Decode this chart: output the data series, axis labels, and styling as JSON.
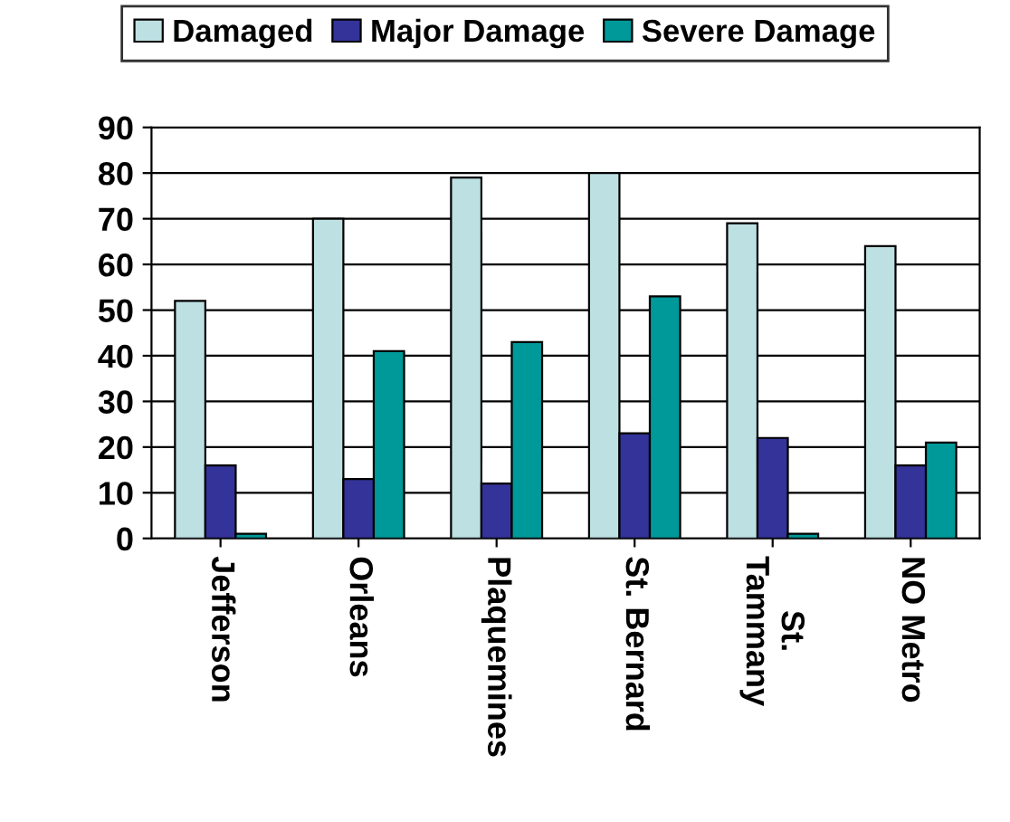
{
  "chart_data": {
    "type": "bar",
    "categories": [
      "Jefferson",
      "Orleans",
      "Plaquemines",
      "St. Bernard",
      "St.\nTammany",
      "NO Metro"
    ],
    "series": [
      {
        "name": "Damaged",
        "color": "#bde0e3",
        "values": [
          52,
          70,
          79,
          80,
          69,
          64
        ]
      },
      {
        "name": "Major Damage",
        "color": "#333399",
        "values": [
          16,
          13,
          12,
          23,
          22,
          16
        ]
      },
      {
        "name": "Severe Damage",
        "color": "#009999",
        "values": [
          1,
          41,
          43,
          53,
          1,
          21
        ]
      }
    ],
    "ylim": [
      0,
      90
    ],
    "yticks": [
      0,
      10,
      20,
      30,
      40,
      50,
      60,
      70,
      80,
      90
    ],
    "grid": "y",
    "legend": "top"
  }
}
